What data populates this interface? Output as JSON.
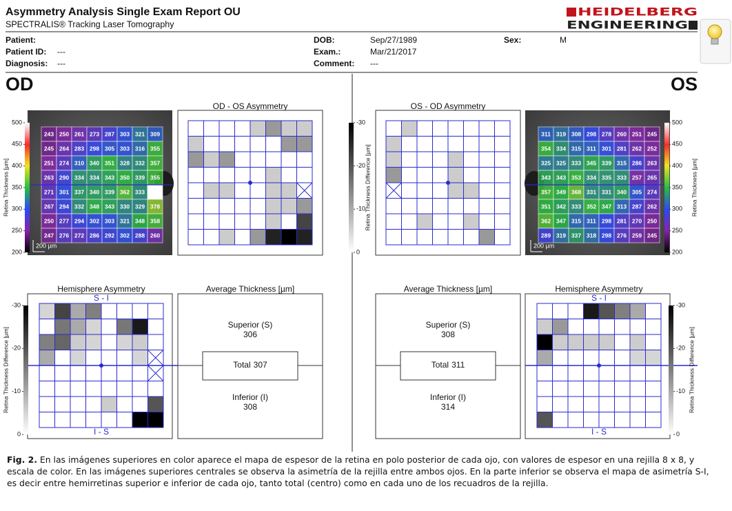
{
  "header": {
    "title": "Asymmetry Analysis Single Exam Report OU",
    "subtitle": "SPECTRALIS® Tracking Laser Tomography",
    "logo_top": "HEIDELBERG",
    "logo_bottom": "ENGINEERING"
  },
  "patient": {
    "fields": [
      {
        "label": "Patient:"
      },
      {
        "label": "Patient ID:",
        "value": "---"
      },
      {
        "label": "Diagnosis:",
        "value": "---"
      },
      {
        "label": "DOB:",
        "value": "Sep/27/1989"
      },
      {
        "label": "Exam.:",
        "value": "Mar/21/2017"
      },
      {
        "label": "Comment:",
        "value": "---"
      },
      {
        "label": "Sex:",
        "value": "M"
      }
    ]
  },
  "thickness_scale": {
    "label": "Retina Thickness [µm]",
    "lim": [
      200,
      500
    ],
    "ticks": [
      500,
      450,
      400,
      350,
      300,
      250,
      200
    ]
  },
  "difference_scale": {
    "label": "Retina Thickness Difference [µm]",
    "lim": [
      -30,
      0
    ],
    "ticks": [
      -30,
      -20,
      -10,
      0
    ]
  },
  "od": {
    "label": "OD",
    "thickness_map": {
      "scale_bar": "200 µm",
      "values": [
        [
          243,
          250,
          261,
          273,
          287,
          303,
          321,
          309
        ],
        [
          245,
          264,
          283,
          298,
          305,
          303,
          316,
          355
        ],
        [
          251,
          274,
          310,
          340,
          351,
          328,
          332,
          357
        ],
        [
          263,
          290,
          334,
          334,
          343,
          350,
          339,
          355
        ],
        [
          271,
          301,
          337,
          340,
          339,
          362,
          333,
          null
        ],
        [
          267,
          294,
          332,
          348,
          343,
          330,
          329,
          378
        ],
        [
          250,
          277,
          294,
          302,
          303,
          321,
          348,
          358
        ],
        [
          247,
          276,
          272,
          286,
          292,
          302,
          288,
          260
        ]
      ]
    },
    "asymmetry": {
      "title": "OD - OS Asymmetry",
      "values": [
        [
          0,
          0,
          0,
          0,
          -6,
          -12,
          -6,
          -6
        ],
        [
          -6,
          0,
          0,
          0,
          0,
          0,
          -12,
          -12
        ],
        [
          -12,
          -6,
          -12,
          0,
          0,
          0,
          0,
          0
        ],
        [
          0,
          0,
          0,
          0,
          0,
          -6,
          0,
          0
        ],
        [
          0,
          -6,
          -6,
          0,
          0,
          -6,
          -6,
          null
        ],
        [
          0,
          0,
          0,
          0,
          0,
          -6,
          -6,
          -12
        ],
        [
          0,
          0,
          0,
          0,
          0,
          -6,
          0,
          -22
        ],
        [
          0,
          0,
          -6,
          0,
          -12,
          -26,
          -30,
          -26
        ]
      ]
    },
    "hemisphere": {
      "title": "Hemisphere Asymmetry",
      "top_label": "S - I",
      "bottom_label": "I - S",
      "values": [
        [
          -5,
          -22,
          -10,
          -15,
          0,
          0,
          0,
          0
        ],
        [
          0,
          -16,
          -10,
          -5,
          0,
          -16,
          -27,
          0
        ],
        [
          -15,
          -18,
          -6,
          -5,
          0,
          -5,
          -6,
          0
        ],
        [
          -10,
          0,
          -5,
          0,
          0,
          0,
          -5,
          null
        ],
        [
          0,
          0,
          0,
          0,
          0,
          0,
          0,
          null
        ],
        [
          0,
          0,
          0,
          0,
          0,
          0,
          0,
          0
        ],
        [
          0,
          0,
          0,
          0,
          -6,
          0,
          0,
          -20
        ],
        [
          0,
          0,
          0,
          0,
          0,
          0,
          -30,
          -30
        ]
      ]
    },
    "average": {
      "title": "Average Thickness [µm]",
      "superior_label": "Superior (S)",
      "superior": 306,
      "total_label": "Total",
      "total": 307,
      "inferior_label": "Inferior (I)",
      "inferior": 308
    }
  },
  "os": {
    "label": "OS",
    "thickness_map": {
      "scale_bar": "200 µm",
      "values": [
        [
          311,
          319,
          308,
          298,
          278,
          260,
          251,
          245
        ],
        [
          354,
          334,
          315,
          311,
          301,
          281,
          262,
          252
        ],
        [
          325,
          325,
          333,
          345,
          339,
          315,
          286,
          263
        ],
        [
          343,
          343,
          353,
          334,
          335,
          333,
          257,
          265
        ],
        [
          357,
          349,
          368,
          331,
          331,
          340,
          305,
          274
        ],
        [
          351,
          342,
          333,
          352,
          347,
          313,
          287,
          262
        ],
        [
          362,
          347,
          315,
          311,
          298,
          281,
          270,
          250
        ],
        [
          289,
          319,
          337,
          318,
          298,
          276,
          259,
          245
        ]
      ]
    },
    "asymmetry": {
      "title": "OS - OD Asymmetry",
      "values": [
        [
          0,
          -6,
          0,
          0,
          0,
          0,
          0,
          0
        ],
        [
          -6,
          0,
          0,
          0,
          0,
          0,
          0,
          0
        ],
        [
          -6,
          0,
          0,
          0,
          -6,
          0,
          0,
          0
        ],
        [
          -12,
          0,
          0,
          0,
          -6,
          0,
          0,
          0
        ],
        [
          null,
          0,
          0,
          0,
          -6,
          -6,
          0,
          0
        ],
        [
          0,
          0,
          0,
          0,
          0,
          0,
          0,
          0
        ],
        [
          0,
          0,
          -6,
          0,
          0,
          -6,
          0,
          0
        ],
        [
          0,
          0,
          0,
          0,
          0,
          0,
          -12,
          0
        ]
      ]
    },
    "hemisphere": {
      "title": "Hemisphere Asymmetry",
      "top_label": "S - I",
      "bottom_label": "I - S",
      "values": [
        [
          0,
          0,
          0,
          -27,
          -20,
          -15,
          -10,
          0
        ],
        [
          -6,
          -12,
          0,
          0,
          0,
          0,
          0,
          0
        ],
        [
          -30,
          -6,
          -6,
          -6,
          -6,
          0,
          -6,
          0
        ],
        [
          -10,
          0,
          0,
          0,
          0,
          0,
          -5,
          -5
        ],
        [
          0,
          0,
          0,
          0,
          0,
          0,
          0,
          0
        ],
        [
          0,
          0,
          0,
          0,
          0,
          0,
          0,
          0
        ],
        [
          0,
          0,
          0,
          0,
          0,
          0,
          0,
          0
        ],
        [
          -20,
          0,
          0,
          0,
          0,
          0,
          0,
          0
        ]
      ]
    },
    "average": {
      "title": "Average Thickness [µm]",
      "superior_label": "Superior (S)",
      "superior": 308,
      "total_label": "Total",
      "total": 311,
      "inferior_label": "Inferior (I)",
      "inferior": 314
    }
  },
  "caption": {
    "label": "Fig. 2.",
    "text": "En las imágenes superiores en color aparece el mapa de espesor de la retina en polo posterior de cada ojo, con valores de espesor en una rejilla 8 x 8, y escala de color. En las imágenes superiores centrales se observa la asimetría de la rejilla entre ambos ojos. En la parte inferior se observa el mapa de asimetría S-I, es decir entre hemirretinas superior e inferior de cada ojo, tanto total (centro) como en cada uno de los recuadros de la rejilla."
  }
}
